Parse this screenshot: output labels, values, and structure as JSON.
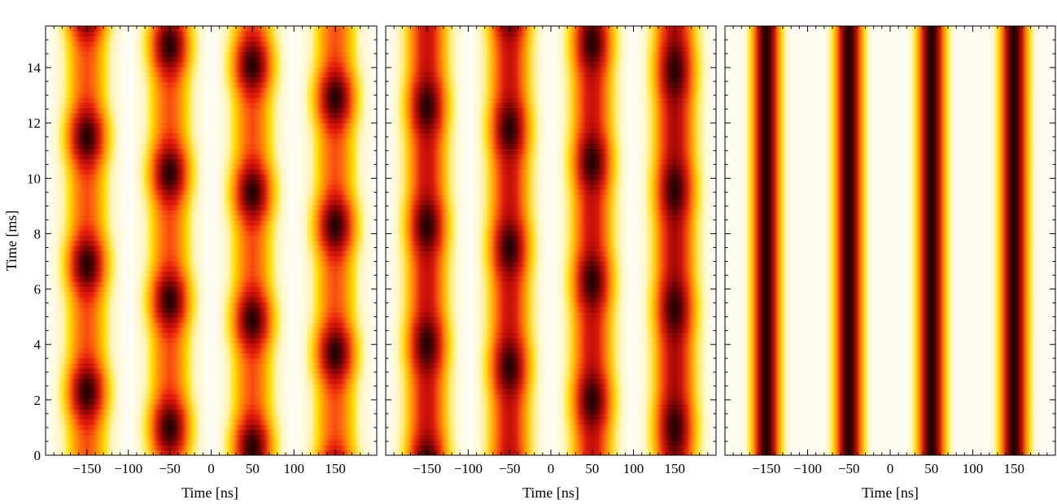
{
  "chart_data": [
    {
      "type": "heatmap",
      "panel": "left",
      "xlabel": "Time [ns]",
      "ylabel": "Time [ms]",
      "xlim": [
        -200,
        200
      ],
      "ylim": [
        0,
        15.5
      ],
      "xticks": [
        -150,
        -100,
        -50,
        0,
        50,
        100,
        150
      ],
      "xtick_labels": [
        "−150",
        "−100",
        "−50",
        "0",
        "50",
        "100",
        "150"
      ],
      "yticks": [
        0,
        2,
        4,
        6,
        8,
        10,
        12,
        14
      ],
      "ytick_labels": [
        "0",
        "2",
        "4",
        "6",
        "8",
        "10",
        "12",
        "14"
      ],
      "grid": false,
      "pulses": [
        {
          "center": -150,
          "width": 30,
          "base_intensity": 0.55,
          "peak_intensity": 1.0,
          "period": 4.6,
          "phase": 2.3
        },
        {
          "center": -50,
          "width": 30,
          "base_intensity": 0.55,
          "peak_intensity": 1.0,
          "period": 4.6,
          "phase": 1.0
        },
        {
          "center": 50,
          "width": 30,
          "base_intensity": 0.55,
          "peak_intensity": 1.0,
          "period": 4.6,
          "phase": 0.3
        },
        {
          "center": 150,
          "width": 30,
          "base_intensity": 0.55,
          "peak_intensity": 1.0,
          "period": 4.6,
          "phase": 3.7
        }
      ]
    },
    {
      "type": "heatmap",
      "panel": "middle",
      "xlabel": "Time [ns]",
      "ylabel": "",
      "xlim": [
        -200,
        200
      ],
      "ylim": [
        0,
        15.5
      ],
      "xticks": [
        -150,
        -100,
        -50,
        0,
        50,
        100,
        150
      ],
      "xtick_labels": [
        "−150",
        "−100",
        "−50",
        "0",
        "50",
        "100",
        "150"
      ],
      "yticks": [
        0,
        2,
        4,
        6,
        8,
        10,
        12,
        14
      ],
      "grid": false,
      "pulses": [
        {
          "center": -150,
          "width": 30,
          "base_intensity": 0.72,
          "peak_intensity": 1.0,
          "period": 4.3,
          "phase": 4.0
        },
        {
          "center": -50,
          "width": 30,
          "base_intensity": 0.72,
          "peak_intensity": 1.0,
          "period": 4.3,
          "phase": 3.2
        },
        {
          "center": 50,
          "width": 30,
          "base_intensity": 0.72,
          "peak_intensity": 1.0,
          "period": 4.3,
          "phase": 2.0
        },
        {
          "center": 150,
          "width": 30,
          "base_intensity": 0.78,
          "peak_intensity": 1.0,
          "period": 4.3,
          "phase": 1.0
        }
      ]
    },
    {
      "type": "heatmap",
      "panel": "right",
      "xlabel": "Time [ns]",
      "ylabel": "",
      "xlim": [
        -200,
        200
      ],
      "ylim": [
        0,
        15.5
      ],
      "xticks": [
        -150,
        -100,
        -50,
        0,
        50,
        100,
        150
      ],
      "xtick_labels": [
        "−150",
        "−100",
        "−50",
        "0",
        "50",
        "100",
        "150"
      ],
      "yticks": [
        0,
        2,
        4,
        6,
        8,
        10,
        12,
        14
      ],
      "grid": false,
      "pulses": [
        {
          "center": -150,
          "width": 20,
          "base_intensity": 1.0,
          "peak_intensity": 1.0,
          "period": 0,
          "phase": 0
        },
        {
          "center": -50,
          "width": 20,
          "base_intensity": 1.0,
          "peak_intensity": 1.0,
          "period": 0,
          "phase": 0
        },
        {
          "center": 50,
          "width": 20,
          "base_intensity": 1.0,
          "peak_intensity": 1.0,
          "period": 0,
          "phase": 0
        },
        {
          "center": 150,
          "width": 20,
          "base_intensity": 1.0,
          "peak_intensity": 1.0,
          "period": 0,
          "phase": 0
        }
      ]
    }
  ],
  "colormap": [
    "#fffdf2",
    "#fff5c0",
    "#ffe000",
    "#ffa500",
    "#ff6a10",
    "#e8200c",
    "#b80c08",
    "#6a0404",
    "#1e0000"
  ]
}
